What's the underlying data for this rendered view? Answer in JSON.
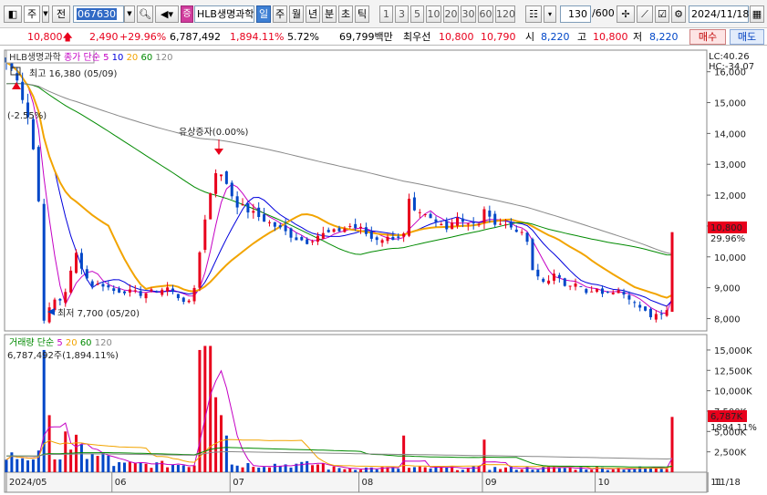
{
  "toolbar": {
    "market_select": "주",
    "prev_btn": "전",
    "code_value": "067630",
    "stock_name": "HLB생명과학",
    "badge": "증",
    "periods": [
      "일",
      "주",
      "월",
      "년",
      "분",
      "초",
      "틱"
    ],
    "intervals": [
      "1",
      "3",
      "5",
      "10",
      "20",
      "30",
      "60",
      "120"
    ],
    "count_value": "130",
    "count_total": "/600",
    "date_value": "2024/11/18"
  },
  "quote": {
    "price": "10,800",
    "change": "2,490",
    "change_pct": "+29.96%",
    "volume": "6,787,492",
    "volume_pct": "1,894.11%",
    "turnover_pct": "5.72%",
    "amount": "69,799백만",
    "best_label": "최우선",
    "ask": "10,800",
    "bid": "10,790",
    "open_label": "시",
    "open": "8,220",
    "high_label": "고",
    "high": "10,800",
    "low_label": "저",
    "low": "8,220",
    "buy_button": "매수",
    "sell_button": "매도"
  },
  "price_panel": {
    "stock_label": "HLB생명과학",
    "indicator_label": "종가 단순",
    "ma_periods": [
      "5",
      "10",
      "20",
      "60",
      "120"
    ],
    "ma_colors": [
      "#c400c4",
      "#0000dd",
      "#f2a400",
      "#008a00",
      "#888888"
    ],
    "lc": "LC:40.26",
    "hc": "HC:-34.07",
    "high_note": "최고 16,380 (05/09)",
    "low_note": "최저 7,700 (05/20)",
    "first_pct": "(-2.55%)",
    "event_note": "유상증자(0.00%)",
    "last_price": "10,800",
    "last_pct": "29.96%",
    "y_ticks": [
      "16,000",
      "15,000",
      "14,000",
      "13,000",
      "12,000",
      "11,000",
      "10,000",
      "9,000",
      "8,000"
    ]
  },
  "volume_panel": {
    "label": "거래량 단순",
    "ma_periods": [
      "5",
      "20",
      "60",
      "120"
    ],
    "total": "6,787,492주(1,894.11%)",
    "last_value": "6,787K",
    "last_pct": "1894.11%",
    "y_ticks": [
      "15,000K",
      "12,500K",
      "10,000K",
      "7,500K",
      "5,000K",
      "2,500K"
    ]
  },
  "x_axis": {
    "labels": [
      "2024/05",
      "06",
      "07",
      "08",
      "09",
      "10",
      "11"
    ],
    "right_label": "11/18"
  },
  "chart_data": {
    "type": "candlestick",
    "y_range": [
      7600,
      16700
    ],
    "volume_range_k": [
      0,
      16000
    ],
    "price_close_anchors": [
      [
        0,
        16300
      ],
      [
        1,
        16100
      ],
      [
        2,
        15700
      ],
      [
        3,
        15200
      ],
      [
        4,
        14600
      ],
      [
        5,
        13500
      ],
      [
        6,
        11800
      ],
      [
        7,
        8000
      ],
      [
        8,
        8300
      ],
      [
        9,
        8600
      ],
      [
        10,
        8600
      ],
      [
        11,
        8900
      ],
      [
        12,
        9500
      ],
      [
        13,
        10100
      ],
      [
        14,
        9700
      ],
      [
        15,
        9300
      ],
      [
        16,
        9100
      ],
      [
        18,
        9100
      ],
      [
        20,
        8900
      ],
      [
        22,
        8900
      ],
      [
        25,
        8800
      ],
      [
        28,
        8900
      ],
      [
        30,
        9000
      ],
      [
        32,
        8700
      ],
      [
        34,
        8500
      ],
      [
        35,
        9000
      ],
      [
        36,
        10200
      ],
      [
        37,
        11200
      ],
      [
        38,
        12100
      ],
      [
        39,
        12800
      ],
      [
        40,
        12600
      ],
      [
        41,
        12400
      ],
      [
        42,
        12000
      ],
      [
        43,
        11700
      ],
      [
        45,
        11500
      ],
      [
        48,
        11200
      ],
      [
        51,
        10900
      ],
      [
        54,
        10600
      ],
      [
        56,
        10500
      ],
      [
        58,
        10700
      ],
      [
        61,
        10800
      ],
      [
        64,
        11000
      ],
      [
        66,
        10900
      ],
      [
        68,
        10600
      ],
      [
        71,
        10600
      ],
      [
        74,
        10700
      ],
      [
        75,
        11800
      ],
      [
        76,
        11400
      ],
      [
        78,
        11300
      ],
      [
        80,
        11100
      ],
      [
        82,
        11000
      ],
      [
        84,
        11300
      ],
      [
        86,
        11100
      ],
      [
        88,
        11000
      ],
      [
        89,
        11600
      ],
      [
        90,
        11200
      ],
      [
        92,
        11100
      ],
      [
        95,
        10900
      ],
      [
        97,
        10500
      ],
      [
        98,
        9500
      ],
      [
        100,
        9200
      ],
      [
        102,
        9400
      ],
      [
        104,
        9100
      ],
      [
        106,
        9200
      ],
      [
        108,
        8800
      ],
      [
        110,
        8900
      ],
      [
        112,
        8800
      ],
      [
        114,
        9000
      ],
      [
        116,
        8700
      ],
      [
        118,
        8300
      ],
      [
        120,
        8100
      ],
      [
        122,
        8200
      ],
      [
        123,
        8310
      ],
      [
        124,
        10800
      ]
    ],
    "volume_spikes_k": [
      [
        7,
        15000
      ],
      [
        8,
        7000
      ],
      [
        11,
        5000
      ],
      [
        13,
        4600
      ],
      [
        14,
        3400
      ],
      [
        36,
        15000
      ],
      [
        37,
        15500
      ],
      [
        38,
        15500
      ],
      [
        39,
        9200
      ],
      [
        40,
        7000
      ],
      [
        41,
        4500
      ],
      [
        74,
        4500
      ],
      [
        89,
        4000
      ],
      [
        124,
        6787
      ]
    ],
    "last_candle": {
      "open": 8220,
      "high": 10800,
      "low": 8220,
      "close": 10800,
      "volume": 6787492
    }
  }
}
